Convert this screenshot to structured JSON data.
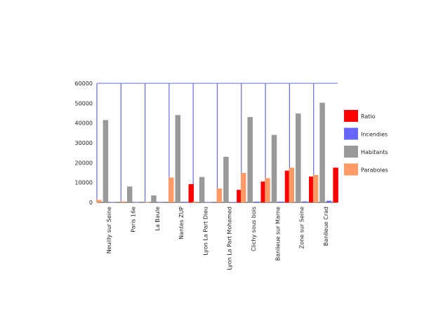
{
  "chart_data": {
    "type": "bar",
    "title": "",
    "xlabel": "",
    "ylabel": "",
    "ylim": [
      0,
      60000
    ],
    "yticks": [
      0,
      10000,
      20000,
      30000,
      40000,
      50000,
      60000
    ],
    "categories": [
      "Neuilly sur Seine",
      "Paris 16e",
      "La Baule",
      "Nantes ZUP",
      "Lyon La Part Dieu",
      "Lyon La Part Mohamed",
      "Clichy sous bois",
      "Banlieue sur Marne",
      "Zone sur Seine",
      "Banlieue Crad"
    ],
    "series": [
      {
        "name": "Paraboles",
        "color": "#ff9966",
        "values": [
          1200,
          500,
          100,
          12500,
          400,
          7000,
          14800,
          12200,
          17500,
          13800
        ]
      },
      {
        "name": "Habitants",
        "color": "#999999",
        "values": [
          41500,
          8000,
          3500,
          44000,
          12800,
          23000,
          43000,
          34000,
          44800,
          50200
        ]
      },
      {
        "name": "Incendies",
        "color": "#6666ff",
        "values": [
          100,
          50,
          20,
          300,
          100,
          200,
          400,
          400,
          500,
          800
        ]
      },
      {
        "name": "Ratio",
        "color": "#ff0000",
        "values": [
          0,
          0,
          0,
          9200,
          0,
          6300,
          10500,
          16000,
          13000,
          17500
        ]
      }
    ],
    "legend": {
      "position": "right",
      "items": [
        {
          "name": "Ratio",
          "color": "#ff0000"
        },
        {
          "name": "Incendies",
          "color": "#6666ff"
        },
        {
          "name": "Habitants",
          "color": "#999999"
        },
        {
          "name": "Paraboles",
          "color": "#ff9966"
        }
      ]
    },
    "grid": false
  }
}
